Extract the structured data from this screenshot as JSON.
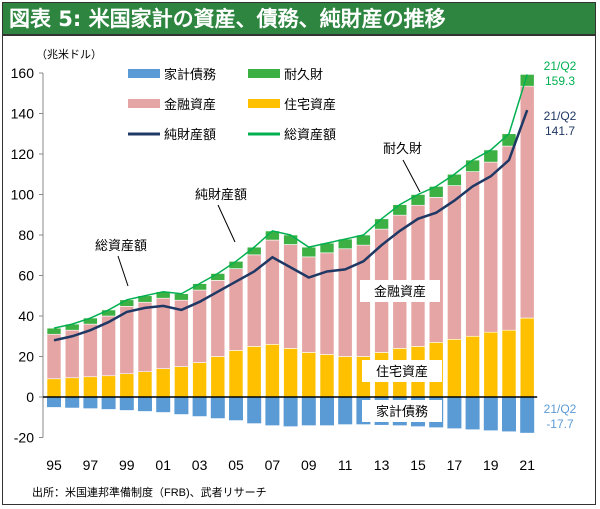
{
  "title": "図表 5: 米国家計の資産、債務、純財産の推移",
  "source": "出所：米国連邦準備制度（FRB)、武者リサーチ",
  "chart_data": {
    "type": "bar",
    "unit_label": "（兆米ドル）",
    "ylim": [
      -20,
      160
    ],
    "yticks": [
      -20,
      0,
      20,
      40,
      60,
      80,
      100,
      120,
      140,
      160
    ],
    "xticks": [
      "95",
      "97",
      "99",
      "01",
      "03",
      "05",
      "07",
      "09",
      "11",
      "13",
      "15",
      "17",
      "19",
      "21"
    ],
    "x": [
      1995,
      1996,
      1997,
      1998,
      1999,
      2000,
      2001,
      2002,
      2003,
      2004,
      2005,
      2006,
      2007,
      2008,
      2009,
      2010,
      2011,
      2012,
      2013,
      2014,
      2015,
      2016,
      2017,
      2018,
      2019,
      2020,
      2021
    ],
    "series": [
      {
        "name": "家計債務",
        "kind": "bar",
        "color": "#5b9bd5",
        "values": [
          -5,
          -5.3,
          -5.6,
          -6,
          -6.5,
          -7,
          -7.5,
          -8.5,
          -9.5,
          -10.5,
          -11.5,
          -13,
          -14,
          -14.5,
          -14,
          -14,
          -13.5,
          -13.5,
          -13.8,
          -14,
          -14.5,
          -15,
          -15.5,
          -16,
          -16.5,
          -17,
          -17.7
        ]
      },
      {
        "name": "住宅資産",
        "kind": "bar",
        "color": "#ffc000",
        "values": [
          9,
          9.5,
          10,
          10.5,
          11.5,
          12.5,
          14,
          15,
          17,
          20,
          23,
          25,
          26,
          24,
          22,
          21,
          20,
          20,
          22,
          24,
          25,
          27,
          28.5,
          30,
          32,
          33,
          39
        ]
      },
      {
        "name": "金融資産",
        "kind": "bar",
        "color": "#e6a5a5",
        "values": [
          22,
          23.5,
          26,
          29.5,
          33.3,
          34.3,
          34.8,
          32.8,
          35.8,
          37.6,
          40.4,
          45.2,
          51.5,
          51.3,
          47.2,
          50.2,
          53.2,
          55,
          60.9,
          65.8,
          69.7,
          71.6,
          75.9,
          81.3,
          84,
          90.9,
          114.5
        ]
      },
      {
        "name": "耐久財",
        "kind": "bar",
        "color": "#3cb043",
        "values": [
          3,
          3,
          3,
          3,
          3.2,
          3.2,
          3.2,
          3.2,
          3.2,
          3.4,
          3.6,
          3.8,
          4.5,
          4.7,
          4.8,
          4.8,
          4.8,
          5,
          5.1,
          5.2,
          5.3,
          5.4,
          5.6,
          5.7,
          6,
          6.1,
          5.8
        ]
      },
      {
        "name": "純財産額",
        "kind": "line",
        "color": "#1f3864",
        "values": [
          28,
          30,
          33,
          37,
          42,
          44,
          45,
          43,
          47,
          52,
          57,
          62,
          69,
          64,
          59,
          62,
          63,
          67,
          75,
          82,
          88,
          91,
          97,
          104,
          109,
          117,
          141.7
        ]
      },
      {
        "name": "総資産額",
        "kind": "line",
        "color": "#00b050",
        "values": [
          34,
          36,
          39,
          43,
          48,
          50,
          52,
          51,
          56,
          61,
          67,
          74,
          82,
          80,
          74,
          76,
          78,
          80,
          88,
          95,
          100,
          104,
          110,
          117,
          122,
          130,
          159.3
        ]
      }
    ],
    "end_labels": {
      "total": [
        "21/Q2",
        "159.3"
      ],
      "net": [
        "21/Q2",
        "141.7"
      ],
      "debt": [
        "21/Q2",
        "-17.7"
      ]
    },
    "annotations": {
      "total": "総資産額",
      "net": "純財産額",
      "durables": "耐久財",
      "financial": "金融資産",
      "housing": "住宅資産",
      "debt": "家計債務"
    },
    "legend_placement": "top-left"
  }
}
